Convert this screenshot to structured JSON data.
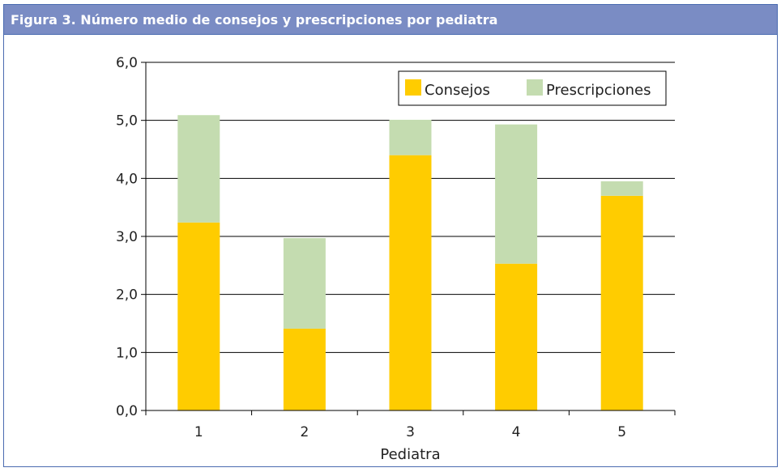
{
  "title": "Figura 3.  Número medio de consejos y prescripciones por pediatra",
  "chart_data": {
    "type": "bar",
    "stacked": true,
    "categories": [
      "1",
      "2",
      "3",
      "4",
      "5"
    ],
    "series": [
      {
        "name": "Consejos",
        "values": [
          3.24,
          1.41,
          4.4,
          2.53,
          3.7
        ],
        "color": "#ffcc00"
      },
      {
        "name": "Prescripciones",
        "values": [
          1.85,
          1.56,
          0.61,
          2.4,
          0.25
        ],
        "color": "#c4dcb0"
      }
    ],
    "xlabel": "Pediatra",
    "ylabel": "",
    "ylim": [
      0,
      6
    ],
    "yticks": [
      "0,0",
      "1,0",
      "2,0",
      "3,0",
      "4,0",
      "5,0",
      "6,0"
    ],
    "grid": true,
    "legend": "top-right"
  }
}
